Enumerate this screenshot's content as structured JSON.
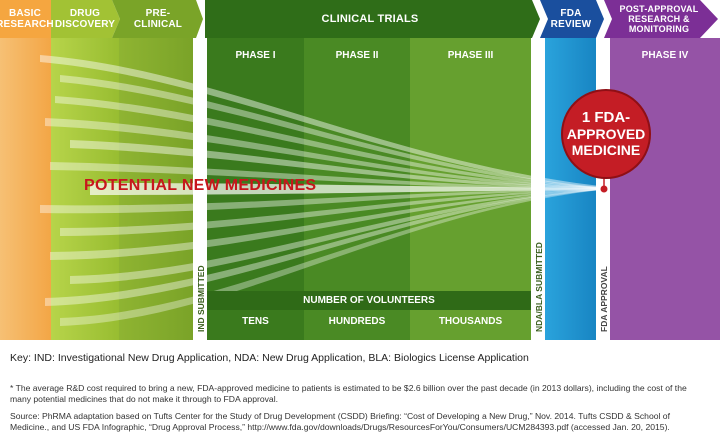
{
  "stages": {
    "basic_research": "BASIC RESEARCH",
    "drug_discovery": "DRUG DISCOVERY",
    "pre_clinical": "PRE-CLINICAL",
    "clinical_trials": "CLINICAL TRIALS",
    "fda_review": "FDA REVIEW",
    "post_approval": "POST-APPROVAL RESEARCH & MONITORING"
  },
  "phases": {
    "phase1": "PHASE I",
    "phase2": "PHASE II",
    "phase3": "PHASE III",
    "phase4": "PHASE IV"
  },
  "milestones": {
    "ind": "IND SUBMITTED",
    "nda": "NDA/BLA SUBMITTED",
    "fda_approval": "FDA APPROVAL"
  },
  "volunteers": {
    "title": "NUMBER OF VOLUNTEERS",
    "tens": "TENS",
    "hundreds": "HUNDREDS",
    "thousands": "THOUSANDS"
  },
  "funnel_label": "POTENTIAL NEW MEDICINES",
  "badge": {
    "line1": "1 FDA-",
    "line2": "APPROVED",
    "line3": "MEDICINE"
  },
  "footer": {
    "key": "Key: IND: Investigational New Drug Application, NDA: New Drug Application, BLA: Biologics License Application",
    "note": "* The average R&D cost required to bring a new, FDA-approved medicine to patients is estimated to be $2.6 billion over the past decade (in 2013 dollars), including the cost of the many potential medicines that do not make it through to FDA approval.",
    "source": "Source: PhRMA adaptation based on Tufts Center for the Study of Drug Development (CSDD) Briefing: “Cost of Developing a New Drug,” Nov. 2014. Tufts CSDD & School of Medicine., and US FDA Infographic, “Drug Approval Process,” http://www.fda.gov/downloads/Drugs/ResourcesForYou/Consumers/UCM284393.pdf (accessed Jan. 20, 2015)."
  },
  "colors": {
    "basic_research": "#f6b05a",
    "drug_discovery": "#a9c93a",
    "pre_clinical": "#86ad2e",
    "phase1": "#3f7d1f",
    "phase2": "#4f8d26",
    "phase3": "#6ea532",
    "fda_review": "#1b8ec9",
    "phase4": "#9250a3",
    "badge": "#c41d25"
  }
}
